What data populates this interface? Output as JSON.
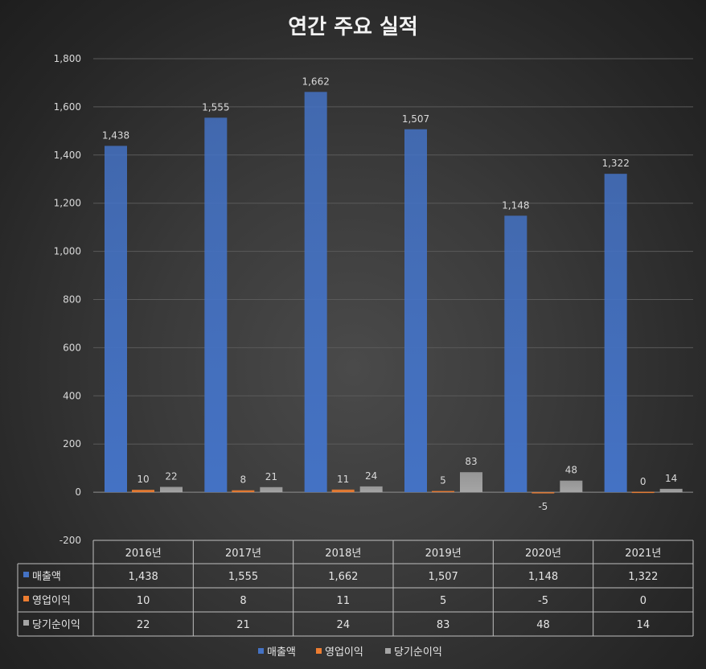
{
  "chart_data": {
    "type": "bar",
    "title": "연간 주요 실적",
    "categories": [
      "2016년",
      "2017년",
      "2018년",
      "2019년",
      "2020년",
      "2021년"
    ],
    "series": [
      {
        "name": "매출액",
        "values": [
          1438,
          1555,
          1662,
          1507,
          1148,
          1322
        ],
        "labels": [
          "1,438",
          "1,555",
          "1,662",
          "1,507",
          "1,148",
          "1,322"
        ],
        "color": "#4472c4"
      },
      {
        "name": "영업이익",
        "values": [
          10,
          8,
          11,
          5,
          -5,
          0
        ],
        "labels": [
          "10",
          "8",
          "11",
          "5",
          "-5",
          "0"
        ],
        "color": "#ed7d31"
      },
      {
        "name": "당기순이익",
        "values": [
          22,
          21,
          24,
          83,
          48,
          14
        ],
        "labels": [
          "22",
          "21",
          "24",
          "83",
          "48",
          "14"
        ],
        "color": "#a5a5a5"
      }
    ],
    "yticks": [
      "1,800",
      "1,600",
      "1,400",
      "1,200",
      "1,000",
      "800",
      "600",
      "400",
      "200",
      "0",
      "-200"
    ],
    "ytick_values": [
      1800,
      1600,
      1400,
      1200,
      1000,
      800,
      600,
      400,
      200,
      0,
      -200
    ],
    "ylim": [
      -200,
      1800
    ],
    "grid": true,
    "legend": "bottom",
    "data_table": true
  }
}
